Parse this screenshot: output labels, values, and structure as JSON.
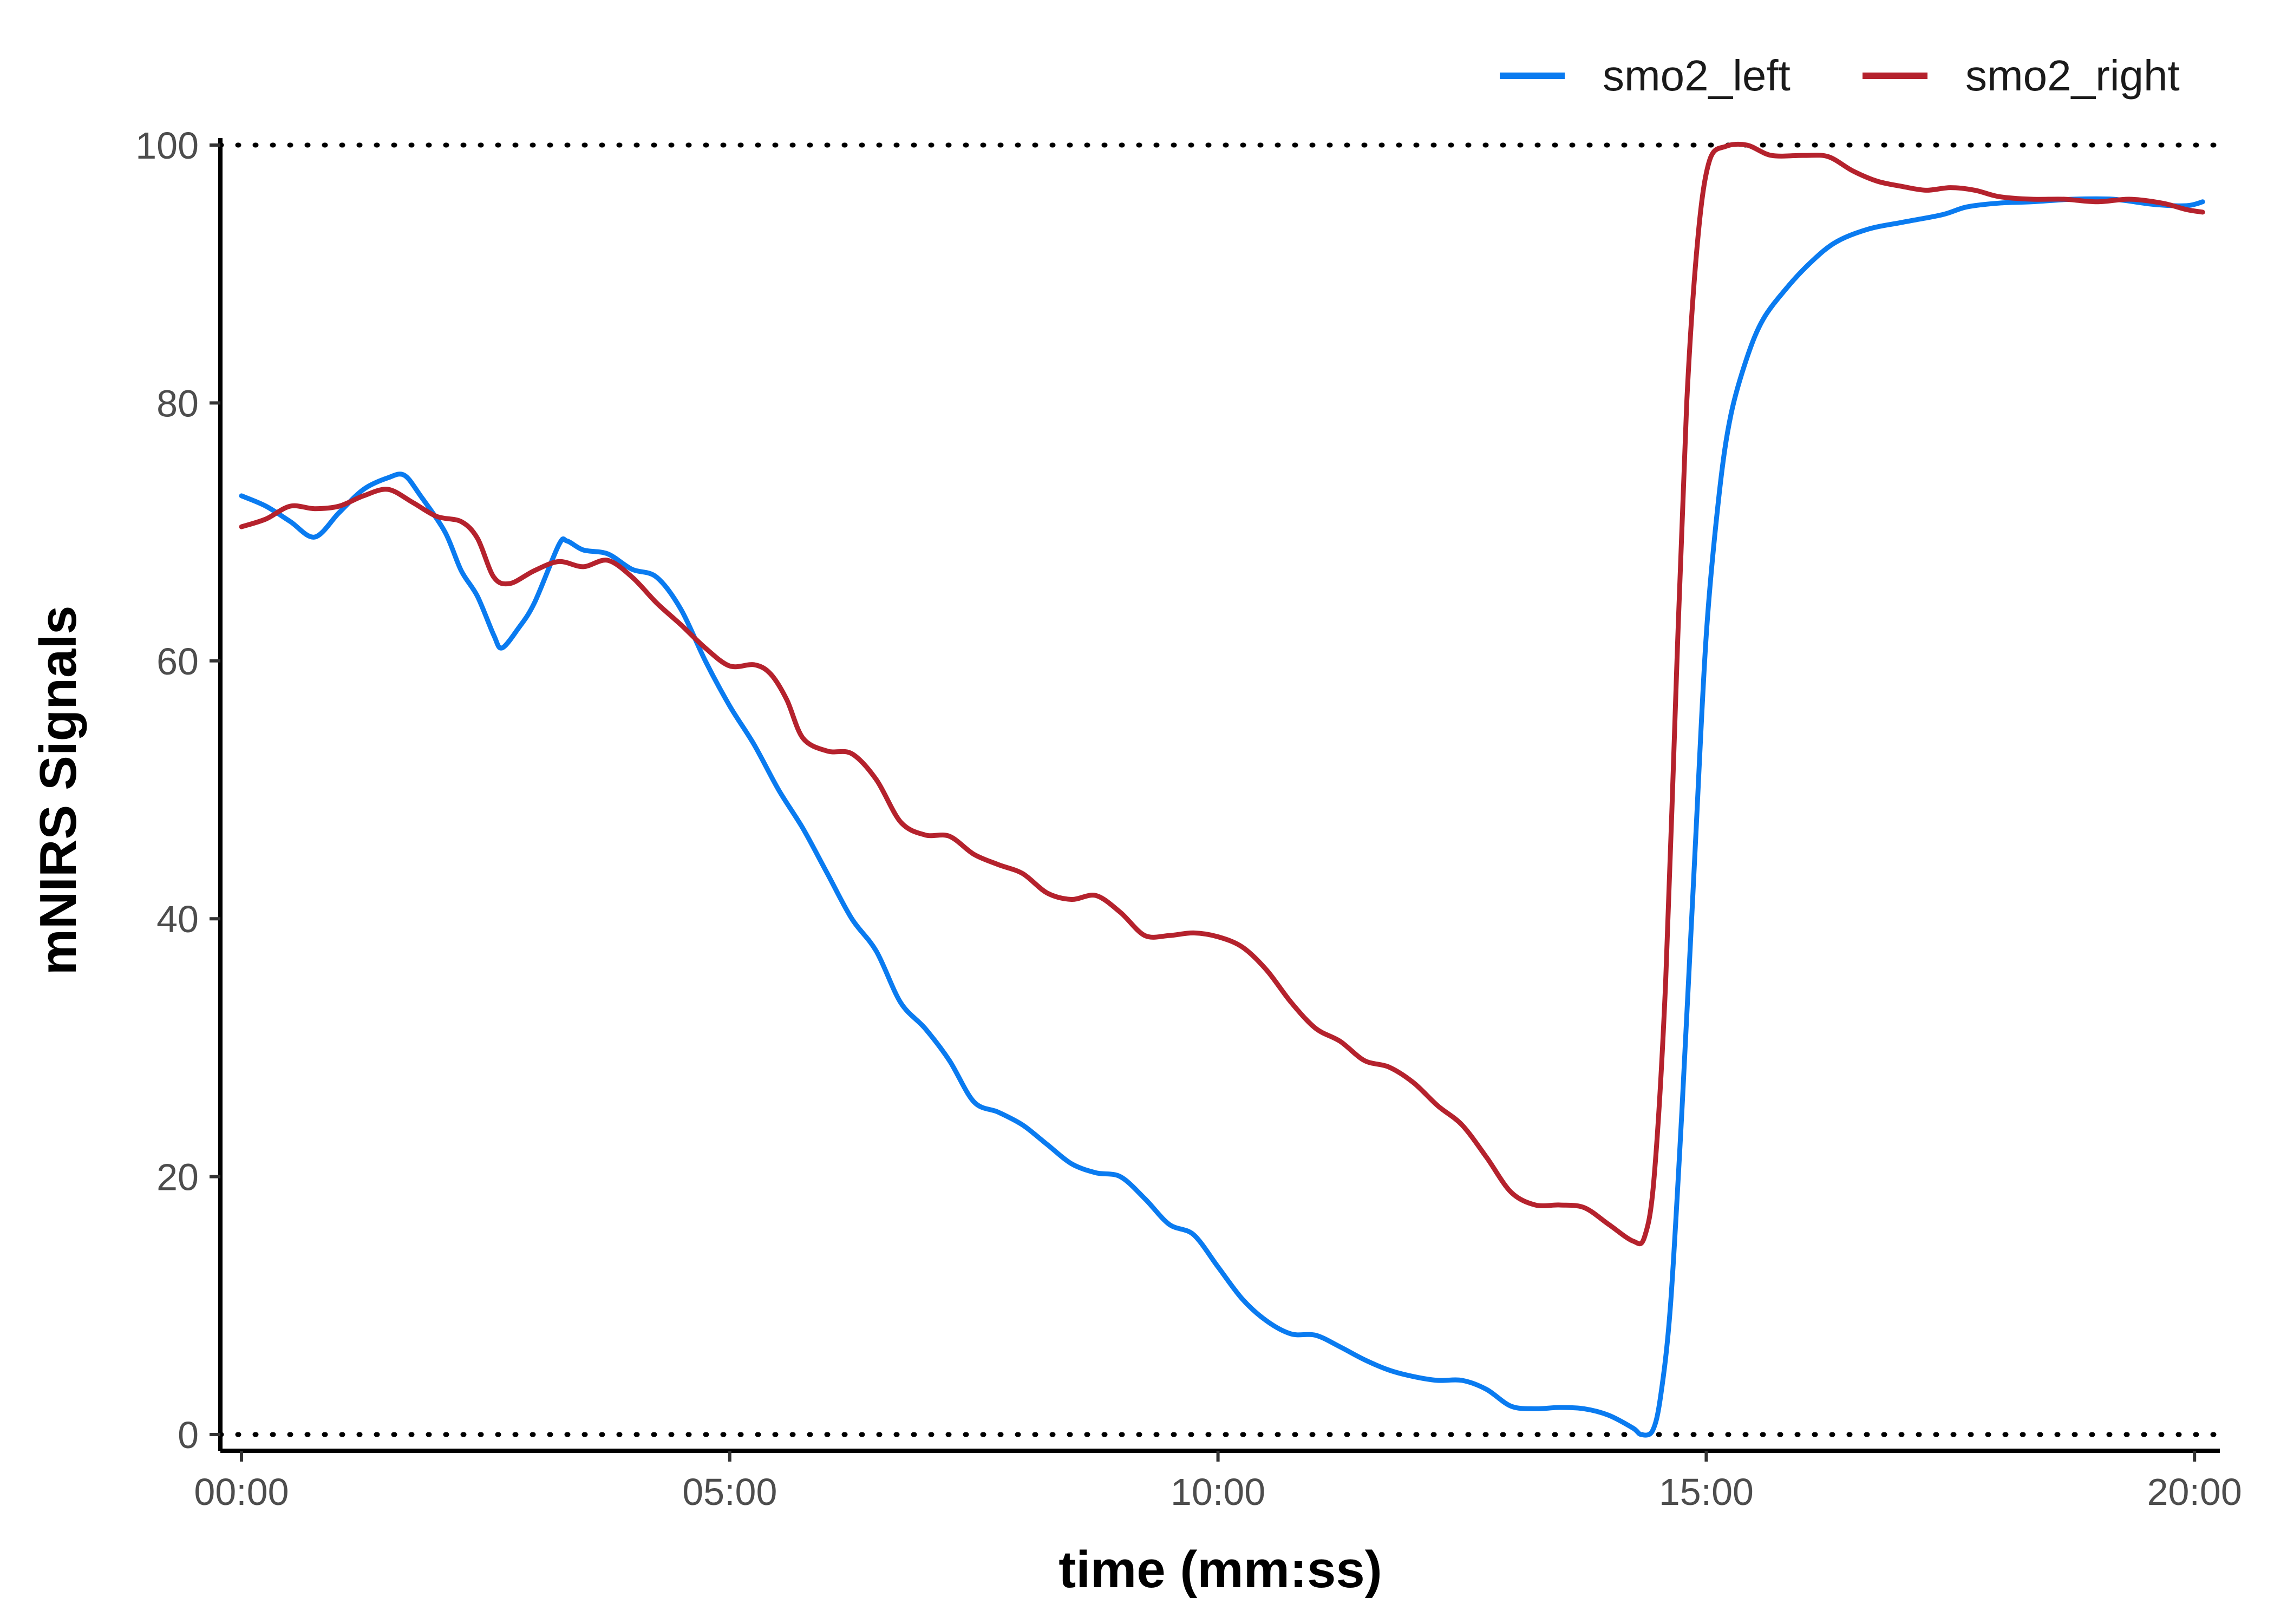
{
  "chart_data": {
    "type": "line",
    "title": "",
    "xlabel": "time (mm:ss)",
    "ylabel": "mNIRS Signals",
    "xlim": [
      0,
      1215
    ],
    "ylim": [
      0,
      100
    ],
    "x_ticks": [
      0,
      300,
      600,
      900,
      1200
    ],
    "x_tick_labels": [
      "00:00",
      "05:00",
      "10:00",
      "15:00",
      "20:00"
    ],
    "y_ticks": [
      0,
      20,
      40,
      60,
      80,
      100
    ],
    "y_tick_labels": [
      "0",
      "20",
      "40",
      "60",
      "80",
      "100"
    ],
    "reference_lines": [
      0,
      100
    ],
    "grid": false,
    "legend_position": "top-right",
    "series": [
      {
        "name": "smo2_left",
        "color": "#0a7bf0",
        "points": [
          [
            0,
            72.8
          ],
          [
            15,
            72.0
          ],
          [
            30,
            70.8
          ],
          [
            45,
            69.6
          ],
          [
            60,
            71.5
          ],
          [
            75,
            73.3
          ],
          [
            90,
            74.2
          ],
          [
            100,
            74.4
          ],
          [
            110,
            72.8
          ],
          [
            125,
            70.0
          ],
          [
            135,
            67.0
          ],
          [
            145,
            65.0
          ],
          [
            155,
            62.0
          ],
          [
            160,
            61.0
          ],
          [
            170,
            62.5
          ],
          [
            180,
            64.5
          ],
          [
            195,
            69.0
          ],
          [
            200,
            69.3
          ],
          [
            210,
            68.6
          ],
          [
            225,
            68.3
          ],
          [
            240,
            67.1
          ],
          [
            255,
            66.5
          ],
          [
            270,
            64.0
          ],
          [
            285,
            60.0
          ],
          [
            300,
            56.5
          ],
          [
            315,
            53.5
          ],
          [
            330,
            50.0
          ],
          [
            345,
            47.0
          ],
          [
            360,
            43.5
          ],
          [
            375,
            40.0
          ],
          [
            390,
            37.5
          ],
          [
            405,
            33.5
          ],
          [
            420,
            31.5
          ],
          [
            435,
            29.0
          ],
          [
            450,
            25.8
          ],
          [
            465,
            25.0
          ],
          [
            480,
            24.0
          ],
          [
            495,
            22.5
          ],
          [
            510,
            21.0
          ],
          [
            525,
            20.3
          ],
          [
            540,
            20.0
          ],
          [
            555,
            18.3
          ],
          [
            570,
            16.3
          ],
          [
            585,
            15.5
          ],
          [
            600,
            13.0
          ],
          [
            615,
            10.5
          ],
          [
            630,
            8.8
          ],
          [
            645,
            7.8
          ],
          [
            660,
            7.7
          ],
          [
            675,
            6.8
          ],
          [
            690,
            5.8
          ],
          [
            705,
            5.0
          ],
          [
            720,
            4.5
          ],
          [
            735,
            4.2
          ],
          [
            750,
            4.2
          ],
          [
            765,
            3.5
          ],
          [
            780,
            2.2
          ],
          [
            795,
            2.0
          ],
          [
            810,
            2.1
          ],
          [
            825,
            2.0
          ],
          [
            840,
            1.5
          ],
          [
            855,
            0.5
          ],
          [
            860,
            0.0
          ],
          [
            867,
            0.3
          ],
          [
            872,
            3.0
          ],
          [
            878,
            10.0
          ],
          [
            885,
            25.0
          ],
          [
            893,
            45.0
          ],
          [
            900,
            62.0
          ],
          [
            908,
            73.0
          ],
          [
            915,
            79.0
          ],
          [
            925,
            83.5
          ],
          [
            935,
            86.5
          ],
          [
            950,
            89.0
          ],
          [
            965,
            91.0
          ],
          [
            980,
            92.5
          ],
          [
            1000,
            93.5
          ],
          [
            1020,
            94.0
          ],
          [
            1045,
            94.6
          ],
          [
            1060,
            95.2
          ],
          [
            1080,
            95.5
          ],
          [
            1100,
            95.6
          ],
          [
            1125,
            95.8
          ],
          [
            1150,
            95.8
          ],
          [
            1175,
            95.4
          ],
          [
            1195,
            95.3
          ],
          [
            1205,
            95.6
          ]
        ]
      },
      {
        "name": "smo2_right",
        "color": "#b5222d",
        "points": [
          [
            0,
            70.4
          ],
          [
            15,
            71.0
          ],
          [
            30,
            72.0
          ],
          [
            45,
            71.8
          ],
          [
            60,
            72.0
          ],
          [
            75,
            72.8
          ],
          [
            90,
            73.3
          ],
          [
            105,
            72.3
          ],
          [
            120,
            71.2
          ],
          [
            135,
            70.8
          ],
          [
            145,
            69.5
          ],
          [
            155,
            66.5
          ],
          [
            165,
            66.0
          ],
          [
            180,
            67.0
          ],
          [
            195,
            67.7
          ],
          [
            210,
            67.3
          ],
          [
            225,
            67.8
          ],
          [
            240,
            66.5
          ],
          [
            255,
            64.5
          ],
          [
            270,
            62.8
          ],
          [
            285,
            61.0
          ],
          [
            300,
            59.6
          ],
          [
            315,
            59.7
          ],
          [
            325,
            59.0
          ],
          [
            335,
            57.0
          ],
          [
            345,
            54.0
          ],
          [
            360,
            53.0
          ],
          [
            375,
            52.8
          ],
          [
            390,
            50.8
          ],
          [
            405,
            47.5
          ],
          [
            420,
            46.5
          ],
          [
            435,
            46.4
          ],
          [
            450,
            45.0
          ],
          [
            465,
            44.2
          ],
          [
            480,
            43.5
          ],
          [
            495,
            42.0
          ],
          [
            510,
            41.5
          ],
          [
            525,
            41.8
          ],
          [
            540,
            40.5
          ],
          [
            555,
            38.7
          ],
          [
            570,
            38.7
          ],
          [
            585,
            38.9
          ],
          [
            600,
            38.6
          ],
          [
            615,
            37.8
          ],
          [
            630,
            36.0
          ],
          [
            645,
            33.5
          ],
          [
            660,
            31.5
          ],
          [
            675,
            30.5
          ],
          [
            690,
            29.0
          ],
          [
            705,
            28.5
          ],
          [
            720,
            27.3
          ],
          [
            735,
            25.5
          ],
          [
            750,
            24.0
          ],
          [
            765,
            21.5
          ],
          [
            780,
            18.8
          ],
          [
            795,
            17.8
          ],
          [
            810,
            17.8
          ],
          [
            825,
            17.6
          ],
          [
            840,
            16.3
          ],
          [
            855,
            15.0
          ],
          [
            862,
            15.3
          ],
          [
            868,
            20.0
          ],
          [
            875,
            35.0
          ],
          [
            882,
            60.0
          ],
          [
            888,
            80.0
          ],
          [
            895,
            93.0
          ],
          [
            902,
            98.8
          ],
          [
            912,
            99.9
          ],
          [
            925,
            100.0
          ],
          [
            940,
            99.2
          ],
          [
            960,
            99.2
          ],
          [
            975,
            99.1
          ],
          [
            990,
            98.0
          ],
          [
            1005,
            97.2
          ],
          [
            1020,
            96.8
          ],
          [
            1035,
            96.5
          ],
          [
            1050,
            96.7
          ],
          [
            1065,
            96.5
          ],
          [
            1080,
            96.0
          ],
          [
            1100,
            95.8
          ],
          [
            1120,
            95.8
          ],
          [
            1140,
            95.6
          ],
          [
            1160,
            95.8
          ],
          [
            1180,
            95.5
          ],
          [
            1195,
            95.0
          ],
          [
            1205,
            94.8
          ]
        ]
      }
    ]
  }
}
